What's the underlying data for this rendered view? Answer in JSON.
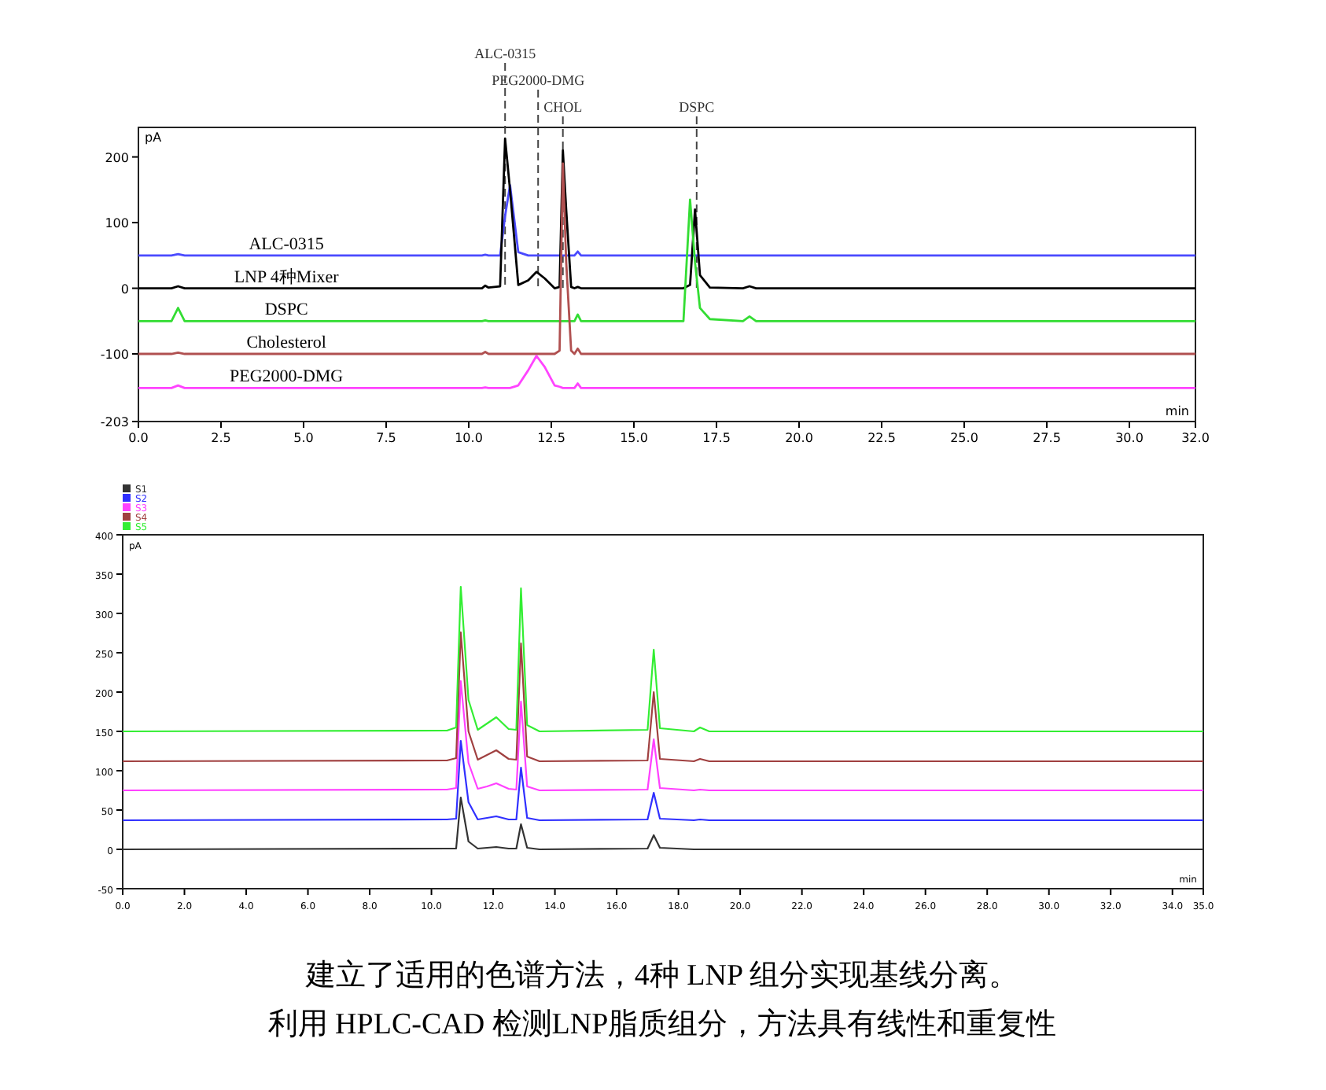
{
  "chart_data": [
    {
      "type": "line",
      "ylabel": "pA",
      "xlabel": "min",
      "xlim": [
        0,
        32
      ],
      "ylim": [
        -203,
        245
      ],
      "xticks": [
        {
          "value": 0,
          "label": "0.0"
        },
        {
          "value": 2.5,
          "label": "2.5"
        },
        {
          "value": 5,
          "label": "5.0"
        },
        {
          "value": 7.5,
          "label": "7.5"
        },
        {
          "value": 10,
          "label": "10.0"
        },
        {
          "value": 12.5,
          "label": "12.5"
        },
        {
          "value": 15,
          "label": "15.0"
        },
        {
          "value": 17.5,
          "label": "17.5"
        },
        {
          "value": 20,
          "label": "20.0"
        },
        {
          "value": 22.5,
          "label": "22.5"
        },
        {
          "value": 25,
          "label": "25.0"
        },
        {
          "value": 27.5,
          "label": "27.5"
        },
        {
          "value": 30,
          "label": "30.0"
        },
        {
          "value": 32,
          "label": "32.0"
        }
      ],
      "yticks": [
        -203,
        -100,
        0,
        100,
        200
      ],
      "grid": false,
      "legend": false,
      "line_style": "solid",
      "x": [
        0,
        1.0,
        1.2,
        1.4,
        10.4,
        10.5,
        10.6,
        10.95,
        11.1,
        11.25,
        11.5,
        11.8,
        12.05,
        12.3,
        12.6,
        12.75,
        12.85,
        12.95,
        13.1,
        13.2,
        13.3,
        13.4,
        16.5,
        16.7,
        16.85,
        17.0,
        17.3,
        18.3,
        18.5,
        18.7,
        32
      ],
      "series": [
        {
          "name": "ALC-0315",
          "color": "#4a4aff",
          "values": [
            50,
            50,
            52,
            50,
            50,
            51,
            50,
            50,
            110,
            157,
            55,
            50,
            50,
            50,
            50,
            50,
            50,
            50,
            50,
            50,
            56,
            50,
            50,
            50,
            50,
            50,
            50,
            50,
            50,
            50,
            50
          ]
        },
        {
          "name": "LNP 4种Mixer",
          "color": "#000000",
          "values": [
            0,
            0,
            3,
            0,
            0,
            4,
            1,
            3,
            228,
            150,
            5,
            12,
            25,
            15,
            0,
            2,
            210,
            120,
            2,
            0,
            2,
            0,
            0,
            5,
            120,
            20,
            1,
            0,
            3,
            0,
            0
          ]
        },
        {
          "name": "DSPC",
          "color": "#33dd33",
          "values": [
            -50,
            -50,
            -30,
            -50,
            -50,
            -49,
            -50,
            -50,
            -50,
            -50,
            -50,
            -50,
            -50,
            -50,
            -50,
            -50,
            -50,
            -50,
            -50,
            -50,
            -40,
            -50,
            -50,
            135,
            40,
            -30,
            -47,
            -50,
            -43,
            -50,
            -50
          ]
        },
        {
          "name": "Cholesterol",
          "color": "#b05050",
          "values": [
            -100,
            -100,
            -98,
            -100,
            -100,
            -97,
            -100,
            -100,
            -100,
            -100,
            -100,
            -100,
            -100,
            -100,
            -100,
            -95,
            190,
            40,
            -95,
            -100,
            -92,
            -100,
            -100,
            -100,
            -100,
            -100,
            -100,
            -100,
            -100,
            -100,
            -100
          ]
        },
        {
          "name": "PEG2000-DMG",
          "color": "#ff44ff",
          "values": [
            -152,
            -152,
            -148,
            -152,
            -152,
            -151,
            -152,
            -152,
            -152,
            -152,
            -148,
            -125,
            -103,
            -120,
            -148,
            -150,
            -152,
            -152,
            -152,
            -152,
            -145,
            -152,
            -152,
            -152,
            -152,
            -152,
            -152,
            -152,
            -152,
            -152,
            -152
          ]
        }
      ],
      "ref_lines": [
        {
          "axis": "x",
          "value": 11.1,
          "label": "ALC-0315",
          "line_style": "dashed",
          "color": "#444444"
        },
        {
          "axis": "x",
          "value": 12.1,
          "label": "PEG2000-DMG",
          "line_style": "dashed",
          "color": "#444444"
        },
        {
          "axis": "x",
          "value": 12.85,
          "label": "CHOL",
          "line_style": "dashed",
          "color": "#444444"
        },
        {
          "axis": "x",
          "value": 16.9,
          "label": "DSPC",
          "line_style": "dashed",
          "color": "#444444"
        }
      ]
    },
    {
      "type": "line",
      "ylabel": "pA",
      "xlabel": "min",
      "xlim": [
        0,
        35
      ],
      "ylim": [
        -50,
        400
      ],
      "xticks": [
        {
          "value": 0,
          "label": "0.0"
        },
        {
          "value": 2,
          "label": "2.0"
        },
        {
          "value": 4,
          "label": "4.0"
        },
        {
          "value": 6,
          "label": "6.0"
        },
        {
          "value": 8,
          "label": "8.0"
        },
        {
          "value": 10,
          "label": "10.0"
        },
        {
          "value": 12,
          "label": "12.0"
        },
        {
          "value": 14,
          "label": "14.0"
        },
        {
          "value": 16,
          "label": "16.0"
        },
        {
          "value": 18,
          "label": "18.0"
        },
        {
          "value": 20,
          "label": "20.0"
        },
        {
          "value": 22,
          "label": "22.0"
        },
        {
          "value": 24,
          "label": "24.0"
        },
        {
          "value": 26,
          "label": "26.0"
        },
        {
          "value": 28,
          "label": "28.0"
        },
        {
          "value": 30,
          "label": "30.0"
        },
        {
          "value": 32,
          "label": "32.0"
        },
        {
          "value": 34,
          "label": "34.0"
        },
        {
          "value": 35,
          "label": "35.0"
        }
      ],
      "yticks": [
        -50,
        0,
        50,
        100,
        150,
        200,
        250,
        300,
        350,
        400
      ],
      "grid": false,
      "legend": "top",
      "line_style": "solid",
      "x": [
        0,
        10.5,
        10.8,
        10.95,
        11.2,
        11.5,
        11.8,
        12.1,
        12.5,
        12.75,
        12.9,
        13.1,
        13.5,
        17.0,
        17.2,
        17.4,
        18.5,
        18.7,
        19.0,
        35
      ],
      "series": [
        {
          "name": "S1",
          "color": "#333333",
          "values": [
            0,
            1,
            1,
            66,
            10,
            1,
            2,
            3,
            1,
            1,
            32,
            2,
            0,
            1,
            18,
            2,
            0,
            0,
            0,
            0
          ]
        },
        {
          "name": "S2",
          "color": "#3030ff",
          "values": [
            37,
            38,
            39,
            138,
            60,
            38,
            40,
            42,
            38,
            38,
            104,
            40,
            37,
            38,
            72,
            39,
            37,
            38,
            37,
            37
          ]
        },
        {
          "name": "S3",
          "color": "#ff40ff",
          "values": [
            75,
            76,
            78,
            214,
            110,
            77,
            80,
            84,
            77,
            76,
            188,
            80,
            75,
            76,
            140,
            78,
            75,
            76,
            75,
            75
          ]
        },
        {
          "name": "S4",
          "color": "#a04040",
          "values": [
            112,
            113,
            116,
            276,
            150,
            114,
            120,
            126,
            115,
            114,
            262,
            118,
            112,
            113,
            200,
            115,
            112,
            115,
            112,
            112
          ]
        },
        {
          "name": "S5",
          "color": "#33ee33",
          "values": [
            150,
            151,
            155,
            334,
            190,
            152,
            160,
            168,
            153,
            152,
            332,
            158,
            150,
            152,
            254,
            154,
            150,
            155,
            150,
            150
          ]
        }
      ],
      "annotations": [
        "建立了适用的色谱方法，4种 LNP 组分实现基线分离。",
        "利用 HPLC-CAD 检测LNP脂质组分，方法具有线性和重复性"
      ]
    }
  ]
}
